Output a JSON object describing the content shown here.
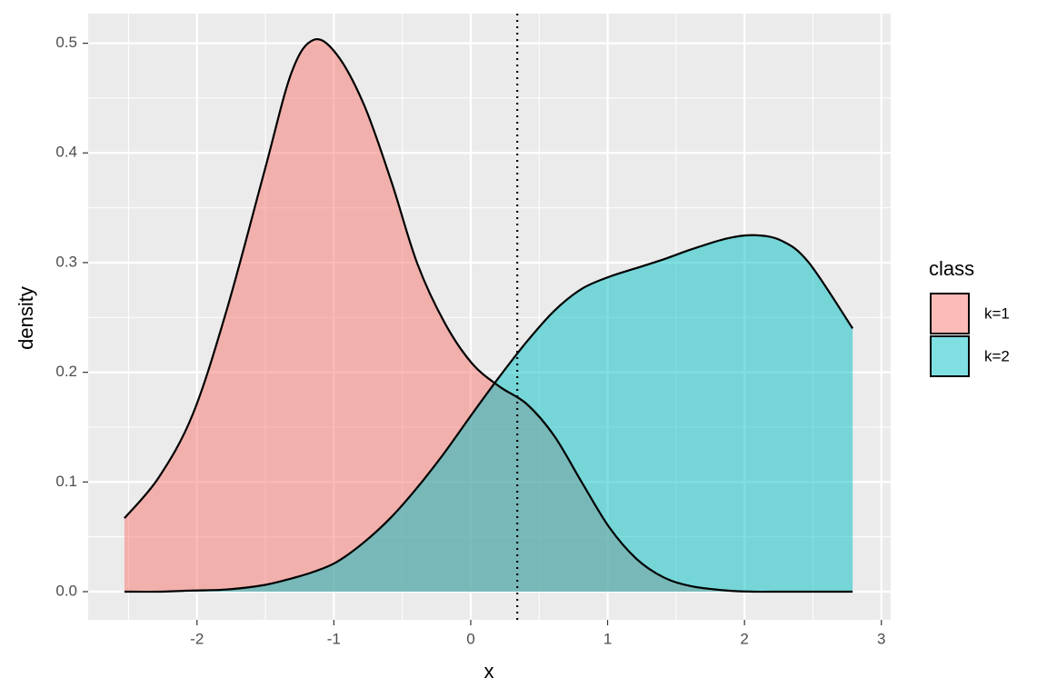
{
  "chart_data": {
    "type": "density",
    "x_label": "x",
    "y_label": "density",
    "x": [
      -2.53,
      -2.28,
      -2.03,
      -1.78,
      -1.51,
      -1.31,
      -1.15,
      -0.98,
      -0.78,
      -0.58,
      -0.39,
      -0.19,
      0.01,
      0.21,
      0.41,
      0.61,
      0.81,
      1.01,
      1.21,
      1.41,
      1.61,
      1.87,
      2.07,
      2.27,
      2.47,
      2.79
    ],
    "series": [
      {
        "name": "k=1",
        "color": "#F8766D",
        "values": [
          0.067,
          0.104,
          0.162,
          0.258,
          0.382,
          0.473,
          0.503,
          0.49,
          0.444,
          0.374,
          0.299,
          0.245,
          0.208,
          0.187,
          0.171,
          0.142,
          0.1,
          0.059,
          0.03,
          0.013,
          0.005,
          0.001,
          0,
          0,
          0,
          0
        ]
      },
      {
        "name": "k=2",
        "color": "#00BFC4",
        "values": [
          0,
          0,
          0.001,
          0.002,
          0.006,
          0.012,
          0.018,
          0.027,
          0.045,
          0.068,
          0.095,
          0.127,
          0.162,
          0.196,
          0.228,
          0.256,
          0.276,
          0.287,
          0.295,
          0.303,
          0.312,
          0.322,
          0.325,
          0.32,
          0.3,
          0.24
        ]
      }
    ],
    "legend_title": "class",
    "legend_position": "right",
    "vline": 0.34,
    "xlim": [
      -2.795,
      3.068
    ],
    "ylim": [
      -0.0257,
      0.527
    ],
    "xticks": [
      -2,
      -1,
      0,
      1,
      2,
      3
    ],
    "yticks": [
      {
        "value": 0,
        "label": "0.0"
      },
      0.1,
      0.2,
      0.3,
      0.4,
      0.5
    ],
    "xminor": [
      -2.5,
      -1.5,
      -0.5,
      0.5,
      1.5,
      2.5
    ],
    "yminor": [
      0.05,
      0.15,
      0.25,
      0.35,
      0.45
    ],
    "grid": true,
    "fill_alpha": 0.5
  }
}
